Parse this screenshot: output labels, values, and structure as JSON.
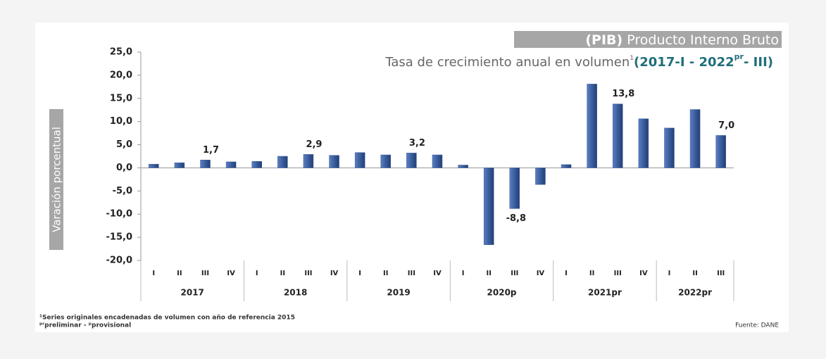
{
  "chart_data": {
    "type": "bar",
    "title_box": "(PIB)",
    "title": "Producto Interno Bruto",
    "subtitle": "Tasa de crecimiento anual en volumen",
    "subtitle_note": "1",
    "subtitle_range_start": "(2017-I - 2022",
    "subtitle_range_sup": "pr",
    "subtitle_range_end": "- III)",
    "y_label": "Varación porcentual",
    "groups": [
      {
        "label": "2017",
        "categories": [
          "I",
          "II",
          "III",
          "IV"
        ]
      },
      {
        "label": "2018",
        "categories": [
          "I",
          "II",
          "III",
          "IV"
        ]
      },
      {
        "label": "2019",
        "categories": [
          "I",
          "II",
          "III",
          "IV"
        ]
      },
      {
        "label": "2020p",
        "categories": [
          "I",
          "II",
          "III",
          "IV"
        ]
      },
      {
        "label": "2021pr",
        "categories": [
          "I",
          "II",
          "III",
          "IV"
        ]
      },
      {
        "label": "2022pr",
        "categories": [
          "I",
          "II",
          "III"
        ]
      }
    ],
    "values": [
      0.8,
      1.1,
      1.7,
      1.3,
      1.4,
      2.5,
      2.9,
      2.7,
      3.3,
      2.8,
      3.2,
      2.8,
      0.6,
      -16.6,
      -8.8,
      -3.6,
      0.7,
      18.1,
      13.8,
      10.6,
      8.6,
      12.6,
      7.0
    ],
    "value_labels": [
      null,
      null,
      "1,7",
      null,
      null,
      null,
      "2,9",
      null,
      null,
      null,
      "3,2",
      null,
      null,
      null,
      "-8,8",
      null,
      null,
      null,
      "13,8",
      null,
      null,
      null,
      "7,0"
    ],
    "color": "#3a5d9e",
    "ylim": [
      -20,
      25
    ],
    "yticks": [
      {
        "value": -20,
        "label": "-20,0"
      },
      {
        "value": -15,
        "label": "-15,0"
      },
      {
        "value": -10,
        "label": "-10,0"
      },
      {
        "value": -5,
        "label": "-5,0"
      },
      {
        "value": 0,
        "label": "0,0"
      },
      {
        "value": 5,
        "label": "5,0"
      },
      {
        "value": 10,
        "label": "10,0"
      },
      {
        "value": 15,
        "label": "15,0"
      },
      {
        "value": 20,
        "label": "20,0"
      },
      {
        "value": 25,
        "label": "25,0"
      }
    ],
    "footnotes": [
      "¹Series originales encadenadas de volumen con año de referencia 2015",
      "ᵖʳpreliminar - ᵖprovisional"
    ],
    "source": "Fuente: DANE"
  }
}
